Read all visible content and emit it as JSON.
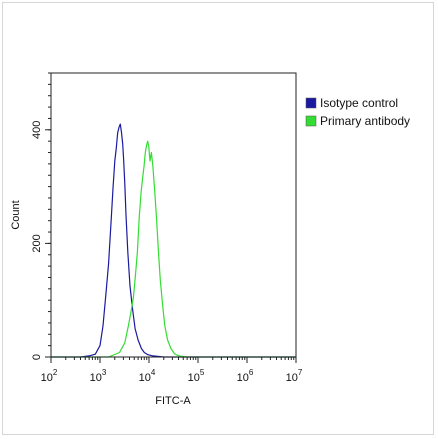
{
  "chart_data": {
    "type": "line",
    "xlabel": "FITC-A",
    "ylabel": "Count",
    "x_scale": "log",
    "xlim": [
      100,
      10000000
    ],
    "ylim": [
      0,
      500
    ],
    "x_ticks": [
      {
        "value": 100,
        "base": "10",
        "exp": "2"
      },
      {
        "value": 1000,
        "base": "10",
        "exp": "3"
      },
      {
        "value": 10000,
        "base": "10",
        "exp": "4"
      },
      {
        "value": 100000,
        "base": "10",
        "exp": "5"
      },
      {
        "value": 1000000,
        "base": "10",
        "exp": "6"
      },
      {
        "value": 10000000,
        "base": "10",
        "exp": "7"
      }
    ],
    "y_ticks": [
      {
        "value": 0,
        "label": "0"
      },
      {
        "value": 200,
        "label": "200"
      },
      {
        "value": 400,
        "label": "400"
      }
    ],
    "grid": false,
    "legend_position": "top-right",
    "series": [
      {
        "name": "Isotype control",
        "color": "#1a1aa0",
        "x": [
          100,
          400,
          600,
          800,
          1000,
          1150,
          1300,
          1500,
          1700,
          1850,
          2000,
          2150,
          2300,
          2450,
          2600,
          2750,
          2900,
          3050,
          3200,
          3400,
          3700,
          4100,
          4600,
          5200,
          6000,
          7000,
          8000,
          9500,
          12000,
          20000,
          10000000
        ],
        "y": [
          0,
          0,
          2,
          5,
          20,
          55,
          105,
          165,
          245,
          300,
          345,
          368,
          395,
          405,
          410,
          395,
          375,
          345,
          305,
          250,
          185,
          125,
          85,
          50,
          30,
          15,
          8,
          4,
          2,
          0,
          0
        ]
      },
      {
        "name": "Primary antibody",
        "color": "#33dd33",
        "x": [
          100,
          1500,
          2500,
          3200,
          3800,
          4300,
          4800,
          5300,
          5800,
          6300,
          6900,
          7400,
          7900,
          8400,
          8900,
          9400,
          9900,
          10500,
          11200,
          12000,
          13000,
          14200,
          15500,
          17000,
          19000,
          21000,
          24000,
          28000,
          33000,
          40000,
          60000,
          10000000
        ],
        "y": [
          0,
          0,
          8,
          25,
          55,
          80,
          105,
          145,
          185,
          245,
          290,
          315,
          335,
          360,
          372,
          380,
          370,
          345,
          360,
          335,
          295,
          245,
          190,
          135,
          90,
          55,
          30,
          15,
          6,
          2,
          0,
          0
        ]
      }
    ]
  }
}
